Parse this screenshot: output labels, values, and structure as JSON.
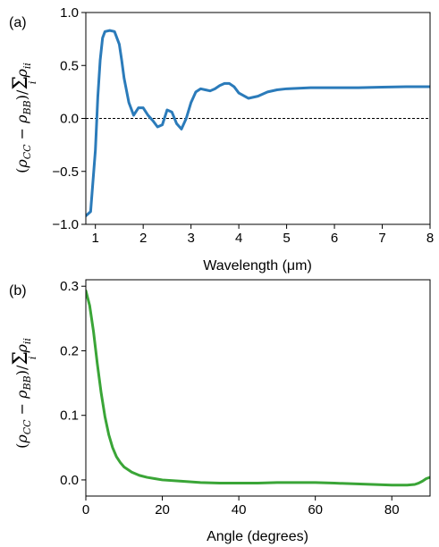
{
  "chart_data": [
    {
      "type": "line",
      "panel_label": "(a)",
      "xlabel": "Wavelength (μm)",
      "ylabel": "(ρCC − ρBB)/Σi ρii",
      "xlim": [
        0.8,
        8
      ],
      "ylim": [
        -1.0,
        1.0
      ],
      "xticks": [
        "1",
        "2",
        "3",
        "4",
        "5",
        "6",
        "7",
        "8"
      ],
      "yticks": [
        "−1.0",
        "−0.5",
        "0.0",
        "0.5",
        "1.0"
      ],
      "reference_line": {
        "y": 0,
        "style": "dashed"
      },
      "grid": false,
      "series": [
        {
          "color": "#2b7bba",
          "x": [
            0.8,
            0.9,
            1.0,
            1.05,
            1.1,
            1.15,
            1.2,
            1.3,
            1.4,
            1.5,
            1.55,
            1.6,
            1.7,
            1.8,
            1.9,
            2.0,
            2.1,
            2.2,
            2.3,
            2.4,
            2.5,
            2.6,
            2.7,
            2.8,
            2.9,
            3.0,
            3.1,
            3.2,
            3.3,
            3.4,
            3.5,
            3.6,
            3.7,
            3.8,
            3.9,
            4.0,
            4.2,
            4.4,
            4.6,
            4.8,
            5.0,
            5.5,
            6.0,
            6.5,
            7.0,
            7.5,
            8.0
          ],
          "y": [
            -0.92,
            -0.88,
            -0.3,
            0.2,
            0.55,
            0.76,
            0.82,
            0.83,
            0.82,
            0.7,
            0.55,
            0.38,
            0.15,
            0.03,
            0.1,
            0.1,
            0.03,
            -0.02,
            -0.08,
            -0.06,
            0.08,
            0.06,
            -0.05,
            -0.1,
            0.0,
            0.15,
            0.25,
            0.28,
            0.27,
            0.26,
            0.28,
            0.31,
            0.33,
            0.33,
            0.3,
            0.24,
            0.19,
            0.21,
            0.25,
            0.27,
            0.28,
            0.29,
            0.29,
            0.29,
            0.295,
            0.3,
            0.3
          ]
        }
      ]
    },
    {
      "type": "line",
      "panel_label": "(b)",
      "xlabel": "Angle (degrees)",
      "ylabel": "(ρCC − ρBB)/Σi ρii",
      "xlim": [
        0,
        90
      ],
      "ylim": [
        -0.025,
        0.31
      ],
      "xticks": [
        "0",
        "20",
        "40",
        "60",
        "80"
      ],
      "yticks": [
        "0.0",
        "0.1",
        "0.2",
        "0.3"
      ],
      "grid": false,
      "series": [
        {
          "color": "#3aa537",
          "x": [
            0,
            1,
            2,
            3,
            4,
            5,
            6,
            7,
            8,
            9,
            10,
            12,
            14,
            16,
            18,
            20,
            25,
            30,
            35,
            40,
            45,
            50,
            55,
            58,
            60,
            65,
            70,
            75,
            80,
            84,
            86,
            87,
            88,
            89,
            90
          ],
          "y": [
            0.293,
            0.27,
            0.23,
            0.18,
            0.135,
            0.098,
            0.07,
            0.05,
            0.036,
            0.027,
            0.02,
            0.012,
            0.007,
            0.004,
            0.002,
            0.0,
            -0.002,
            -0.004,
            -0.005,
            -0.005,
            -0.005,
            -0.004,
            -0.004,
            -0.004,
            -0.004,
            -0.005,
            -0.006,
            -0.007,
            -0.008,
            -0.008,
            -0.007,
            -0.005,
            -0.002,
            0.002,
            0.004
          ]
        }
      ]
    }
  ]
}
